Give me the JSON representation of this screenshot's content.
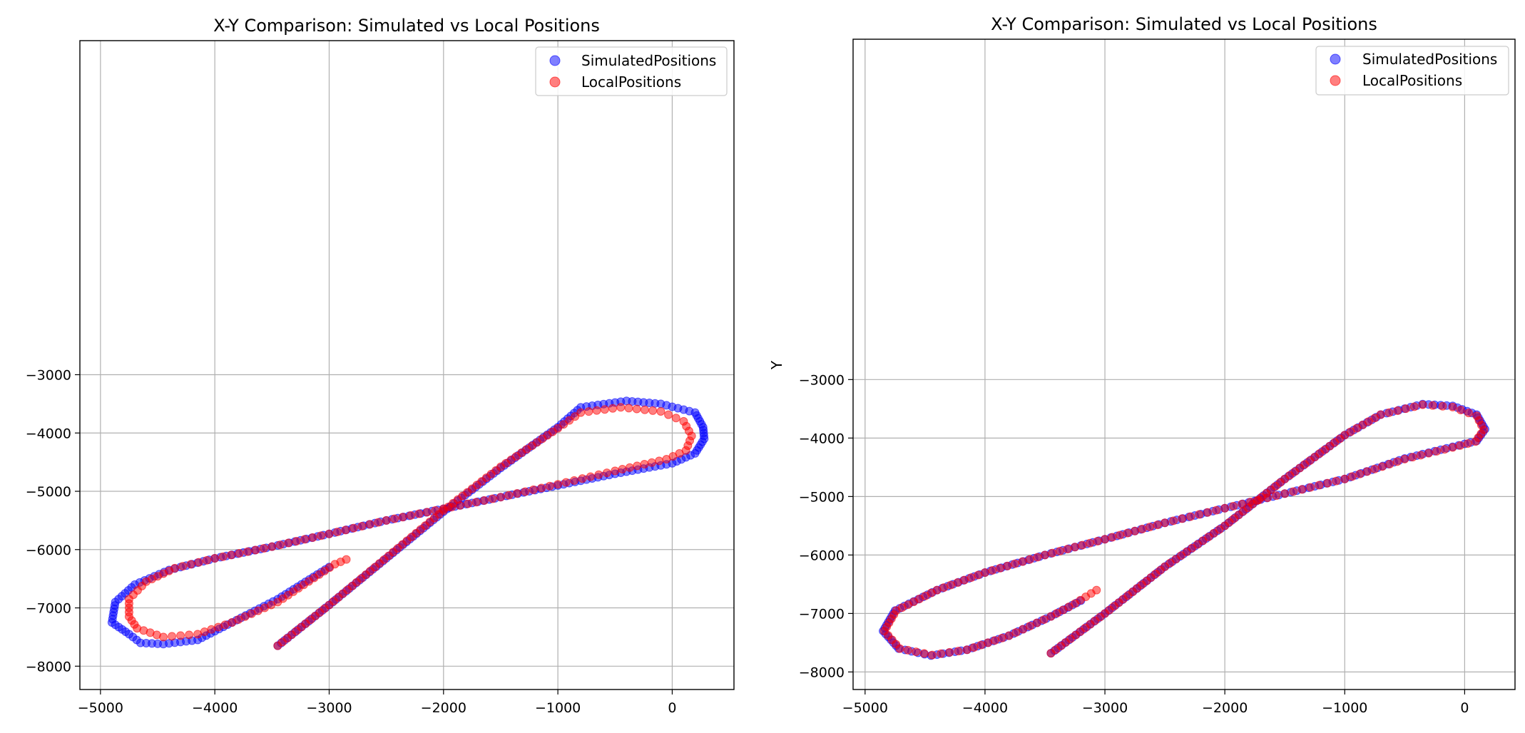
{
  "chart_data": [
    {
      "type": "scatter",
      "title": "X-Y Comparison: Simulated vs Local Positions",
      "xlabel": "",
      "ylabel": "",
      "xlim": [
        -5180,
        540
      ],
      "ylim": [
        -8400,
        2730
      ],
      "xticks": [
        -5000,
        -4000,
        -3000,
        -2000,
        -1000,
        0
      ],
      "yticks": [
        -8000,
        -7000,
        -6000,
        -5000,
        -4000,
        -3000
      ],
      "xtick_labels": [
        "−5000",
        "−4000",
        "−3000",
        "−2000",
        "−1000",
        "0"
      ],
      "ytick_labels": [
        "−8000",
        "−7000",
        "−6000",
        "−5000",
        "−4000",
        "−3000"
      ],
      "grid": true,
      "legend_position": "top-right",
      "series": [
        {
          "name": "SimulatedPositions",
          "color": "#0000ff",
          "alpha": 0.5,
          "path": [
            [
              -3450,
              -7650
            ],
            [
              -3000,
              -6950
            ],
            [
              -2000,
              -5350
            ],
            [
              -1500,
              -4600
            ],
            [
              -1000,
              -3900
            ],
            [
              -800,
              -3560
            ],
            [
              -400,
              -3450
            ],
            [
              -100,
              -3500
            ],
            [
              200,
              -3650
            ],
            [
              270,
              -3900
            ],
            [
              280,
              -4100
            ],
            [
              200,
              -4350
            ],
            [
              0,
              -4520
            ],
            [
              -500,
              -4700
            ],
            [
              -1000,
              -4900
            ],
            [
              -1500,
              -5100
            ],
            [
              -2000,
              -5300
            ],
            [
              -2500,
              -5500
            ],
            [
              -3000,
              -5730
            ],
            [
              -3500,
              -5950
            ],
            [
              -4000,
              -6150
            ],
            [
              -4400,
              -6350
            ],
            [
              -4700,
              -6600
            ],
            [
              -4870,
              -6900
            ],
            [
              -4900,
              -7250
            ],
            [
              -4750,
              -7450
            ],
            [
              -4650,
              -7600
            ],
            [
              -4450,
              -7620
            ],
            [
              -4150,
              -7550
            ],
            [
              -3850,
              -7250
            ],
            [
              -3450,
              -6850
            ],
            [
              -3000,
              -6300
            ]
          ]
        },
        {
          "name": "LocalPositions",
          "color": "#ff0000",
          "alpha": 0.5,
          "path": [
            [
              -3450,
              -7650
            ],
            [
              -3000,
              -6950
            ],
            [
              -2000,
              -5330
            ],
            [
              -1500,
              -4580
            ],
            [
              -1000,
              -3920
            ],
            [
              -800,
              -3650
            ],
            [
              -450,
              -3560
            ],
            [
              -100,
              -3630
            ],
            [
              100,
              -3800
            ],
            [
              170,
              -4050
            ],
            [
              120,
              -4300
            ],
            [
              -50,
              -4450
            ],
            [
              -500,
              -4650
            ],
            [
              -1000,
              -4880
            ],
            [
              -1500,
              -5100
            ],
            [
              -2000,
              -5300
            ],
            [
              -2500,
              -5500
            ],
            [
              -3000,
              -5730
            ],
            [
              -3500,
              -5950
            ],
            [
              -4000,
              -6150
            ],
            [
              -4350,
              -6320
            ],
            [
              -4600,
              -6550
            ],
            [
              -4750,
              -6850
            ],
            [
              -4750,
              -7150
            ],
            [
              -4680,
              -7350
            ],
            [
              -4450,
              -7500
            ],
            [
              -4150,
              -7450
            ],
            [
              -3850,
              -7250
            ],
            [
              -3450,
              -6900
            ],
            [
              -2950,
              -6250
            ],
            [
              -2850,
              -6170
            ]
          ]
        }
      ]
    },
    {
      "type": "scatter",
      "title": "X-Y Comparison: Simulated vs Local Positions",
      "xlabel": "",
      "ylabel": "Y",
      "xlim": [
        -5100,
        420
      ],
      "ylim": [
        -8300,
        2820
      ],
      "xticks": [
        -5000,
        -4000,
        -3000,
        -2000,
        -1000,
        0
      ],
      "yticks": [
        -8000,
        -7000,
        -6000,
        -5000,
        -4000,
        -3000
      ],
      "xtick_labels": [
        "−5000",
        "−4000",
        "−3000",
        "−2000",
        "−1000",
        "0"
      ],
      "ytick_labels": [
        "−8000",
        "−7000",
        "−6000",
        "−5000",
        "−4000",
        "−3000"
      ],
      "grid": true,
      "legend_position": "top-right",
      "series": [
        {
          "name": "SimulatedPositions",
          "color": "#0000ff",
          "alpha": 0.5,
          "path": [
            [
              -3450,
              -7680
            ],
            [
              -3000,
              -7000
            ],
            [
              -2500,
              -6200
            ],
            [
              -2000,
              -5500
            ],
            [
              -1500,
              -4700
            ],
            [
              -1000,
              -3950
            ],
            [
              -700,
              -3600
            ],
            [
              -350,
              -3420
            ],
            [
              -100,
              -3450
            ],
            [
              100,
              -3600
            ],
            [
              170,
              -3850
            ],
            [
              100,
              -4050
            ],
            [
              -100,
              -4150
            ],
            [
              -500,
              -4350
            ],
            [
              -1000,
              -4700
            ],
            [
              -1500,
              -4950
            ],
            [
              -2000,
              -5200
            ],
            [
              -2500,
              -5450
            ],
            [
              -3000,
              -5730
            ],
            [
              -3500,
              -6000
            ],
            [
              -4000,
              -6300
            ],
            [
              -4400,
              -6600
            ],
            [
              -4750,
              -6950
            ],
            [
              -4850,
              -7300
            ],
            [
              -4720,
              -7600
            ],
            [
              -4450,
              -7720
            ],
            [
              -4150,
              -7620
            ],
            [
              -3800,
              -7380
            ],
            [
              -3450,
              -7050
            ],
            [
              -3200,
              -6780
            ]
          ]
        },
        {
          "name": "LocalPositions",
          "color": "#ff0000",
          "alpha": 0.5,
          "path": [
            [
              -3450,
              -7680
            ],
            [
              -3000,
              -7000
            ],
            [
              -2500,
              -6200
            ],
            [
              -2000,
              -5500
            ],
            [
              -1500,
              -4700
            ],
            [
              -1000,
              -3950
            ],
            [
              -700,
              -3600
            ],
            [
              -350,
              -3430
            ],
            [
              -100,
              -3470
            ],
            [
              100,
              -3620
            ],
            [
              160,
              -3860
            ],
            [
              90,
              -4060
            ],
            [
              -100,
              -4160
            ],
            [
              -500,
              -4360
            ],
            [
              -1000,
              -4700
            ],
            [
              -1500,
              -4950
            ],
            [
              -2000,
              -5200
            ],
            [
              -2500,
              -5450
            ],
            [
              -3000,
              -5730
            ],
            [
              -3500,
              -6000
            ],
            [
              -4000,
              -6300
            ],
            [
              -4400,
              -6600
            ],
            [
              -4740,
              -6950
            ],
            [
              -4840,
              -7300
            ],
            [
              -4710,
              -7600
            ],
            [
              -4440,
              -7710
            ],
            [
              -4150,
              -7620
            ],
            [
              -3800,
              -7380
            ],
            [
              -3450,
              -7050
            ],
            [
              -3250,
              -6830
            ],
            [
              -3070,
              -6600
            ]
          ]
        }
      ]
    }
  ]
}
